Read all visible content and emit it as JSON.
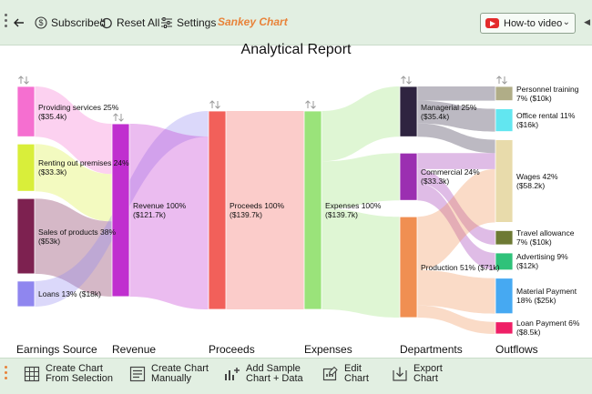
{
  "toolbar": {
    "subscribed_label": "Subscribed",
    "reset_label": "Reset All",
    "settings_label": "Settings",
    "sankey_label": "Sankey Chart",
    "howto_label": "How-to video"
  },
  "bottom_toolbar": {
    "create_from_selection_1": "Create Chart",
    "create_from_selection_2": "From Selection",
    "create_manually_1": "Create Chart",
    "create_manually_2": "Manually",
    "add_sample_1": "Add Sample",
    "add_sample_2": "Chart + Data",
    "edit_chart_1": "Edit",
    "edit_chart_2": "Chart",
    "export_chart_1": "Export",
    "export_chart_2": "Chart"
  },
  "chart_data": {
    "type": "sankey",
    "title": "Analytical Report",
    "columns": [
      "Earnings Source",
      "Revenue",
      "Proceeds",
      "Expenses",
      "Departments",
      "Outflows"
    ],
    "nodes": [
      {
        "id": "ps",
        "col": 0,
        "name": "Providing services 25%",
        "value_label": "($35.4k)",
        "color": "#f56fd0"
      },
      {
        "id": "rp",
        "col": 0,
        "name": "Renting out premises 24%",
        "value_label": "($33.3k)",
        "color": "#d9ee3a"
      },
      {
        "id": "sp",
        "col": 0,
        "name": "Sales of products 38%",
        "value_label": "($53k)",
        "color": "#7d2150"
      },
      {
        "id": "lo",
        "col": 0,
        "name": "Loans 13% ($18k)",
        "value_label": "",
        "color": "#8f86ef"
      },
      {
        "id": "rev",
        "col": 1,
        "name": "Revenue 100%",
        "value_label": "($121.7k)",
        "color": "#c02fcf"
      },
      {
        "id": "pro",
        "col": 2,
        "name": "Proceeds 100%",
        "value_label": "($139.7k)",
        "color": "#f2605a"
      },
      {
        "id": "exp",
        "col": 3,
        "name": "Expenses 100%",
        "value_label": "($139.7k)",
        "color": "#9ae37a"
      },
      {
        "id": "man",
        "col": 4,
        "name": "Managerial 25%",
        "value_label": "($35.4k)",
        "color": "#2f2440"
      },
      {
        "id": "com",
        "col": 4,
        "name": "Commercial 24%",
        "value_label": "($33.3k)",
        "color": "#9b2fb1"
      },
      {
        "id": "prd",
        "col": 4,
        "name": "Production 51% ($71k)",
        "value_label": "",
        "color": "#f08f52"
      },
      {
        "id": "per",
        "col": 5,
        "name": "Personnel training",
        "value_label": "7% ($10k)",
        "color": "#b0ad87"
      },
      {
        "id": "off",
        "col": 5,
        "name": "Office rental 11%",
        "value_label": "($16k)",
        "color": "#62e6f0"
      },
      {
        "id": "wag",
        "col": 5,
        "name": "Wages 42%",
        "value_label": "($58.2k)",
        "color": "#e8dbab"
      },
      {
        "id": "tra",
        "col": 5,
        "name": "Travel allowance",
        "value_label": "7% ($10k)",
        "color": "#6e7a34"
      },
      {
        "id": "adv",
        "col": 5,
        "name": "Advertising 9%",
        "value_label": "($12k)",
        "color": "#2fc27a"
      },
      {
        "id": "mat",
        "col": 5,
        "name": "Material Payment",
        "value_label": "18% ($25k)",
        "color": "#46a9f2"
      },
      {
        "id": "lp",
        "col": 5,
        "name": "Loan Payment 6%",
        "value_label": "($8.5k)",
        "color": "#ef1f66"
      }
    ],
    "links": [
      {
        "source": "ps",
        "target": "rev",
        "value": 35.4
      },
      {
        "source": "rp",
        "target": "rev",
        "value": 33.3
      },
      {
        "source": "sp",
        "target": "rev",
        "value": 53
      },
      {
        "source": "lo",
        "target": "pro",
        "value": 18
      },
      {
        "source": "rev",
        "target": "pro",
        "value": 121.7
      },
      {
        "source": "pro",
        "target": "exp",
        "value": 139.7
      },
      {
        "source": "exp",
        "target": "man",
        "value": 35.4
      },
      {
        "source": "exp",
        "target": "com",
        "value": 33.3
      },
      {
        "source": "exp",
        "target": "prd",
        "value": 71
      },
      {
        "source": "man",
        "target": "per",
        "value": 10
      },
      {
        "source": "man",
        "target": "off",
        "value": 16
      },
      {
        "source": "man",
        "target": "wag",
        "value": 9.4
      },
      {
        "source": "com",
        "target": "wag",
        "value": 11.3
      },
      {
        "source": "com",
        "target": "tra",
        "value": 10
      },
      {
        "source": "com",
        "target": "adv",
        "value": 12
      },
      {
        "source": "prd",
        "target": "wag",
        "value": 37.5
      },
      {
        "source": "prd",
        "target": "mat",
        "value": 25
      },
      {
        "source": "prd",
        "target": "lp",
        "value": 8.5
      }
    ]
  }
}
